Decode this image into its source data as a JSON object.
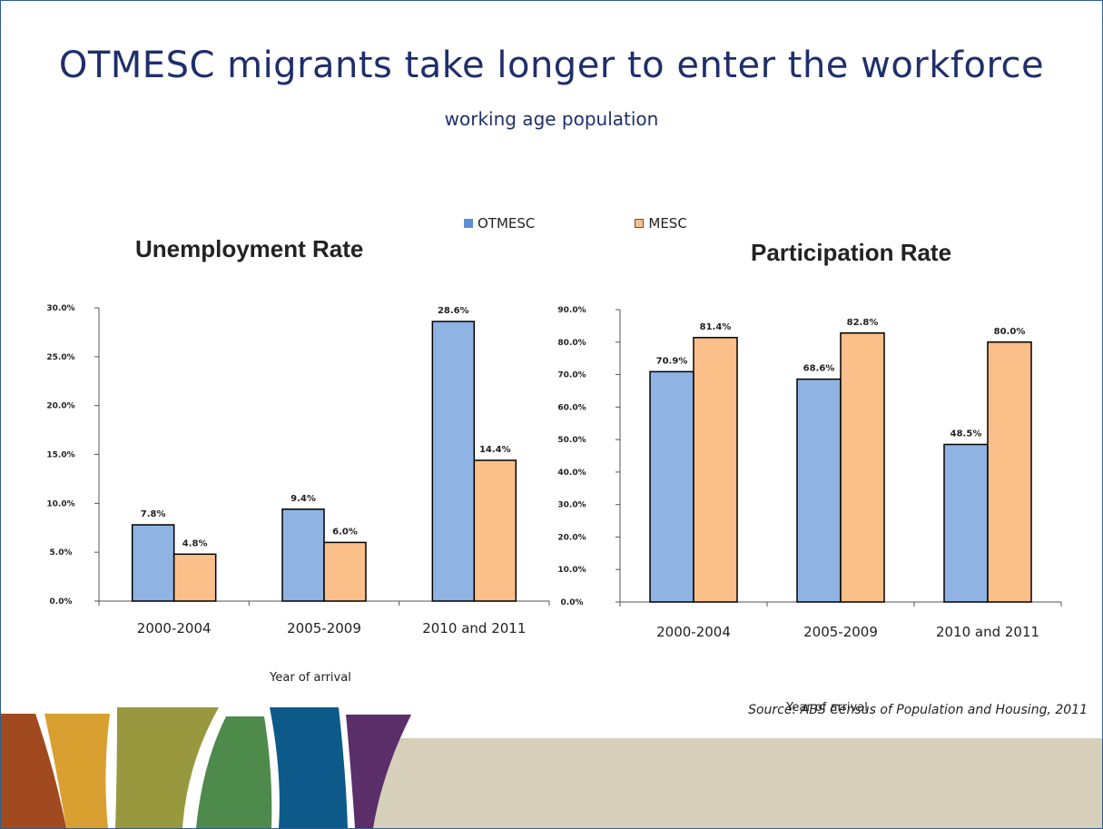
{
  "slide": {
    "title": "OTMESC migrants take longer to enter the workforce",
    "subtitle": "working age population",
    "source": "Source: ABS Census of Population and Housing, 2011"
  },
  "legend": [
    {
      "name": "OTMESC",
      "color": "#8fb3e2"
    },
    {
      "name": "MESC",
      "color": "#fbbf8a"
    }
  ],
  "decor_colors": [
    "#a14a1f",
    "#d9a031",
    "#98993f",
    "#4e8a4c",
    "#0d5a8a",
    "#5a2f6a",
    "#d6d0bb"
  ],
  "chart_data": [
    {
      "type": "bar",
      "title": "Unemployment Rate",
      "xlabel": "Year of arrival",
      "categories": [
        "2000-2004",
        "2005-2009",
        "2010 and 2011"
      ],
      "series": [
        {
          "name": "OTMESC",
          "values": [
            7.8,
            9.4,
            28.6
          ],
          "labels": [
            "7.8%",
            "9.4%",
            "28.6%"
          ]
        },
        {
          "name": "MESC",
          "values": [
            4.8,
            6.0,
            14.4
          ],
          "labels": [
            "4.8%",
            "6.0%",
            "14.4%"
          ]
        }
      ],
      "ylim": [
        0,
        30
      ],
      "yticks": [
        0,
        5,
        10,
        15,
        20,
        25,
        30
      ],
      "ytick_labels": [
        "0.0%",
        "5.0%",
        "10.0%",
        "15.0%",
        "20.0%",
        "25.0%",
        "30.0%"
      ]
    },
    {
      "type": "bar",
      "title": "Participation Rate",
      "xlabel": "Year of arrival",
      "categories": [
        "2000-2004",
        "2005-2009",
        "2010 and 2011"
      ],
      "series": [
        {
          "name": "OTMESC",
          "values": [
            70.9,
            68.6,
            48.5
          ],
          "labels": [
            "70.9%",
            "68.6%",
            "48.5%"
          ]
        },
        {
          "name": "MESC",
          "values": [
            81.4,
            82.8,
            80.0
          ],
          "labels": [
            "81.4%",
            "82.8%",
            "80.0%"
          ]
        }
      ],
      "ylim": [
        0,
        90
      ],
      "yticks": [
        0,
        10,
        20,
        30,
        40,
        50,
        60,
        70,
        80,
        90
      ],
      "ytick_labels": [
        "0.0%",
        "10.0%",
        "20.0%",
        "30.0%",
        "40.0%",
        "50.0%",
        "60.0%",
        "70.0%",
        "80.0%",
        "90.0%"
      ]
    }
  ]
}
